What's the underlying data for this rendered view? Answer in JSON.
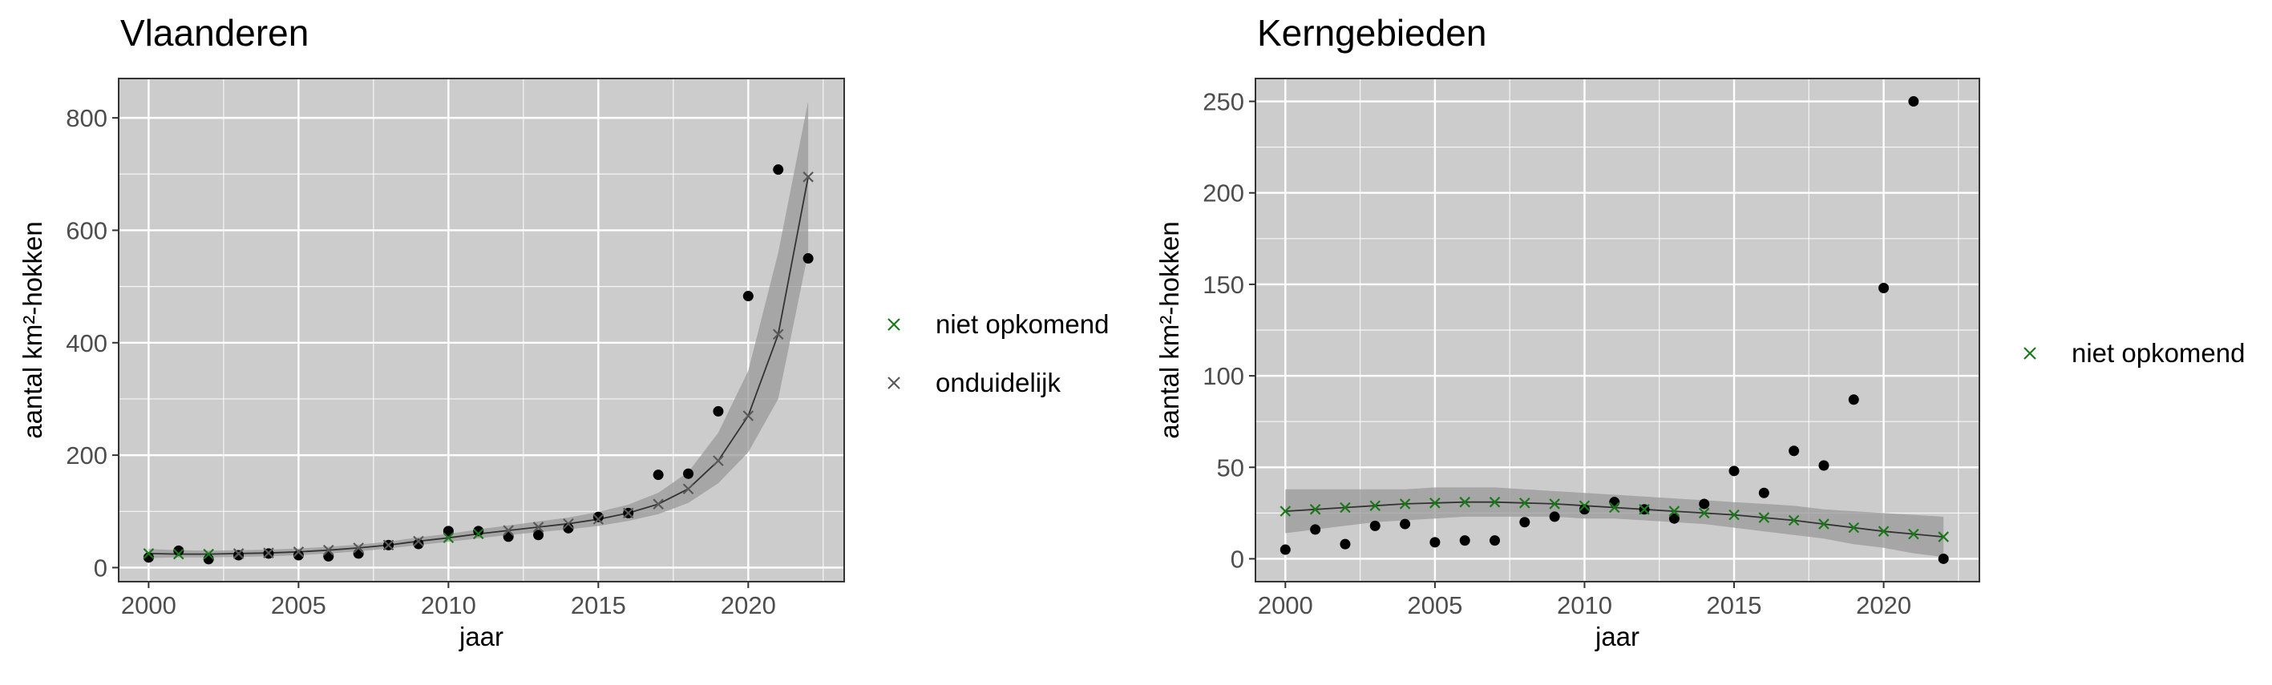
{
  "colors": {
    "panel_bg": "#cccccc",
    "grid": "#ffffff",
    "ribbon": "#9a9a9a",
    "line": "#333333",
    "observed": "#000000",
    "niet_opkomend": "#1a7a1a",
    "onduidelijk": "#595959",
    "text": "#000000",
    "tick_text": "#4d4d4d"
  },
  "chart_data": [
    {
      "type": "scatter",
      "title": "Vlaanderen",
      "xlabel": "jaar",
      "ylabel": "aantal km²-hokken",
      "xlim": [
        1999,
        2023.2
      ],
      "ylim": [
        -25,
        870
      ],
      "x_ticks": [
        2000,
        2005,
        2010,
        2015,
        2020
      ],
      "y_ticks": [
        0,
        200,
        400,
        600,
        800
      ],
      "grid": true,
      "legend": {
        "position": "right",
        "entries": [
          {
            "label": "niet opkomend",
            "color": "#1a7a1a",
            "marker": "x"
          },
          {
            "label": "onduidelijk",
            "color": "#595959",
            "marker": "x"
          }
        ]
      },
      "observed": {
        "x": [
          2000,
          2001,
          2002,
          2003,
          2004,
          2005,
          2006,
          2007,
          2008,
          2009,
          2010,
          2011,
          2012,
          2013,
          2014,
          2015,
          2016,
          2017,
          2018,
          2019,
          2020,
          2021,
          2022
        ],
        "y": [
          18,
          30,
          15,
          22,
          25,
          22,
          20,
          25,
          40,
          42,
          65,
          65,
          55,
          58,
          70,
          90,
          97,
          165,
          167,
          278,
          483,
          708,
          550
        ]
      },
      "fit": {
        "x": [
          2000,
          2001,
          2002,
          2003,
          2004,
          2005,
          2006,
          2007,
          2008,
          2009,
          2010,
          2011,
          2012,
          2013,
          2014,
          2015,
          2016,
          2017,
          2018,
          2019,
          2020,
          2021,
          2022
        ],
        "y": [
          25,
          24,
          24,
          25,
          26,
          28,
          31,
          35,
          40,
          47,
          53,
          60,
          66,
          72,
          78,
          86,
          97,
          113,
          140,
          190,
          270,
          415,
          695
        ],
        "status": [
          "niet opkomend",
          "niet opkomend",
          "niet opkomend",
          "onduidelijk",
          "onduidelijk",
          "onduidelijk",
          "onduidelijk",
          "onduidelijk",
          "onduidelijk",
          "onduidelijk",
          "niet opkomend",
          "niet opkomend",
          "onduidelijk",
          "onduidelijk",
          "onduidelijk",
          "onduidelijk",
          "onduidelijk",
          "onduidelijk",
          "onduidelijk",
          "onduidelijk",
          "onduidelijk",
          "onduidelijk",
          "onduidelijk"
        ],
        "lower": [
          17,
          18,
          18,
          19,
          20,
          22,
          25,
          29,
          34,
          40,
          46,
          52,
          58,
          63,
          68,
          74,
          83,
          95,
          115,
          150,
          205,
          300,
          560
        ],
        "upper": [
          33,
          31,
          30,
          31,
          32,
          34,
          37,
          41,
          46,
          54,
          60,
          68,
          75,
          82,
          89,
          99,
          112,
          133,
          170,
          240,
          350,
          560,
          830
        ]
      }
    },
    {
      "type": "scatter",
      "title": "Kerngebieden",
      "xlabel": "jaar",
      "ylabel": "aantal km²-hokken",
      "xlim": [
        1999,
        2023.2
      ],
      "ylim": [
        -12.5,
        262.5
      ],
      "x_ticks": [
        2000,
        2005,
        2010,
        2015,
        2020
      ],
      "y_ticks": [
        0,
        50,
        100,
        150,
        200,
        250
      ],
      "grid": true,
      "legend": {
        "position": "right",
        "entries": [
          {
            "label": "niet opkomend",
            "color": "#1a7a1a",
            "marker": "x"
          }
        ]
      },
      "observed": {
        "x": [
          2000,
          2001,
          2002,
          2003,
          2004,
          2005,
          2006,
          2007,
          2008,
          2009,
          2010,
          2011,
          2012,
          2013,
          2014,
          2015,
          2016,
          2017,
          2018,
          2019,
          2020,
          2021,
          2022
        ],
        "y": [
          5,
          16,
          8,
          18,
          19,
          9,
          10,
          10,
          20,
          23,
          27,
          31,
          27,
          22,
          30,
          48,
          36,
          59,
          51,
          87,
          148,
          250,
          0
        ]
      },
      "fit": {
        "x": [
          2000,
          2001,
          2002,
          2003,
          2004,
          2005,
          2006,
          2007,
          2008,
          2009,
          2010,
          2011,
          2012,
          2013,
          2014,
          2015,
          2016,
          2017,
          2018,
          2019,
          2020,
          2021,
          2022
        ],
        "y": [
          26,
          27,
          28,
          29,
          30,
          30.5,
          31,
          31,
          30.5,
          30,
          29,
          28,
          27,
          26,
          25,
          24,
          22.5,
          21,
          19,
          17,
          15,
          13.5,
          12
        ],
        "status": [
          "niet opkomend",
          "niet opkomend",
          "niet opkomend",
          "niet opkomend",
          "niet opkomend",
          "niet opkomend",
          "niet opkomend",
          "niet opkomend",
          "niet opkomend",
          "niet opkomend",
          "niet opkomend",
          "niet opkomend",
          "niet opkomend",
          "niet opkomend",
          "niet opkomend",
          "niet opkomend",
          "niet opkomend",
          "niet opkomend",
          "niet opkomend",
          "niet opkomend",
          "niet opkomend",
          "niet opkomend",
          "niet opkomend"
        ],
        "lower": [
          14,
          16,
          18,
          20,
          21,
          22,
          23,
          23,
          23,
          23,
          22,
          22,
          21,
          20,
          19,
          17,
          15,
          13,
          11,
          8,
          6,
          3,
          1
        ],
        "upper": [
          38,
          38,
          38,
          38,
          38,
          39,
          39,
          39,
          38,
          37,
          36,
          35,
          34,
          33,
          32,
          31,
          30,
          29,
          27,
          26,
          25,
          24,
          23
        ]
      }
    }
  ]
}
